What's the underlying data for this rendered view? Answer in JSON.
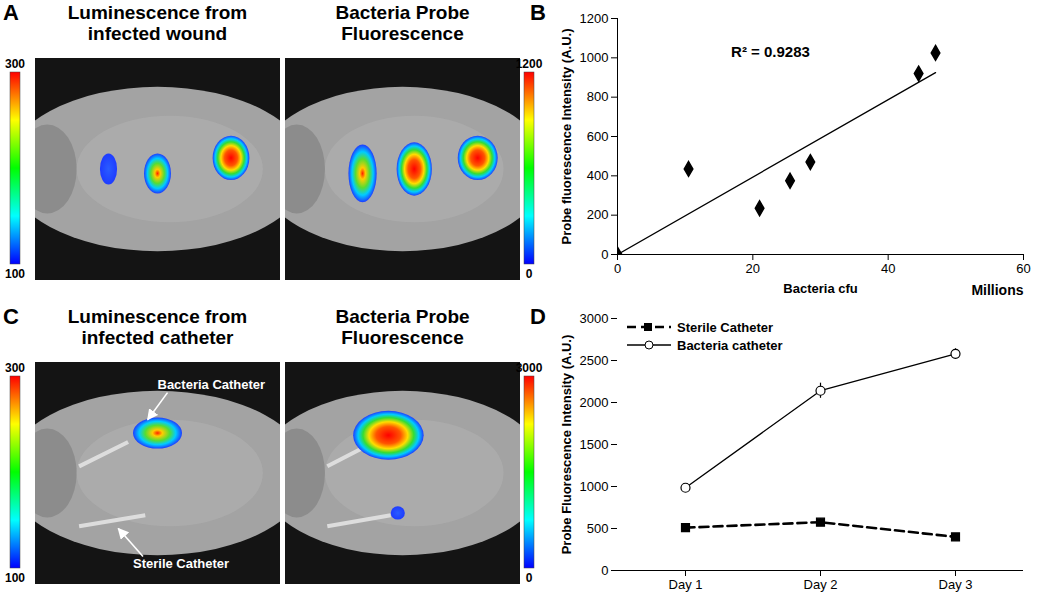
{
  "chart_data": [
    {
      "type": "image",
      "panel": "A",
      "images": [
        {
          "title": "Luminescence from infected wound",
          "colorbar": {
            "range": [
              100,
              300
            ],
            "ticks": [
              100,
              300
            ]
          }
        },
        {
          "title": "Bacteria Probe Fluorescence",
          "colorbar": {
            "range": [
              0,
              1200
            ],
            "ticks": [
              0,
              1200
            ]
          }
        }
      ]
    },
    {
      "type": "scatter",
      "panel": "B",
      "x": [
        0,
        10.5,
        21,
        25.5,
        28.5,
        44.5,
        47
      ],
      "values": [
        0,
        435,
        235,
        375,
        470,
        920,
        1025
      ],
      "trendline": {
        "x": [
          0,
          47
        ],
        "values": [
          0,
          925
        ]
      },
      "annotations": [
        "R² = 0.9283"
      ],
      "xlabel": "Bacteria cfu",
      "xunits": "Millions",
      "ylabel": "Probe fluorescence Intensity (A.U.)",
      "xlim": [
        0,
        60
      ],
      "xticks": [
        0,
        20,
        40,
        60
      ],
      "ylim": [
        0,
        1200
      ],
      "yticks": [
        0,
        200,
        400,
        600,
        800,
        1000,
        1200
      ],
      "marker": "diamond",
      "color": "#000000"
    },
    {
      "type": "image",
      "panel": "C",
      "images": [
        {
          "title": "Luminescence from infected catheter",
          "colorbar": {
            "range": [
              100,
              300
            ],
            "ticks": [
              100,
              300
            ]
          },
          "annotations": [
            "Bacteria Catheter",
            "Sterile Catheter"
          ]
        },
        {
          "title": "Bacteria Probe Fluorescence",
          "colorbar": {
            "range": [
              0,
              3000
            ],
            "ticks": [
              0,
              3000
            ]
          }
        }
      ]
    },
    {
      "type": "line",
      "panel": "D",
      "categories": [
        "Day 1",
        "Day 2",
        "Day 3"
      ],
      "series": [
        {
          "name": "Sterile Catheter",
          "color": "#000000",
          "values": [
            510,
            575,
            400
          ],
          "errors": [
            30,
            40,
            30
          ],
          "marker": "square",
          "line_style": "dashed"
        },
        {
          "name": "Bacteria catheter",
          "color": "#000000",
          "values": [
            985,
            2140,
            2580
          ],
          "errors": [
            25,
            90,
            60
          ],
          "marker": "open_circle",
          "line_style": "solid"
        }
      ],
      "ylabel": "Probe Fluorescence Intensity (A.U.)",
      "ylim": [
        0,
        3000
      ],
      "yticks": [
        0,
        500,
        1000,
        1500,
        2000,
        2500,
        3000
      ],
      "legend": "top-left"
    }
  ]
}
